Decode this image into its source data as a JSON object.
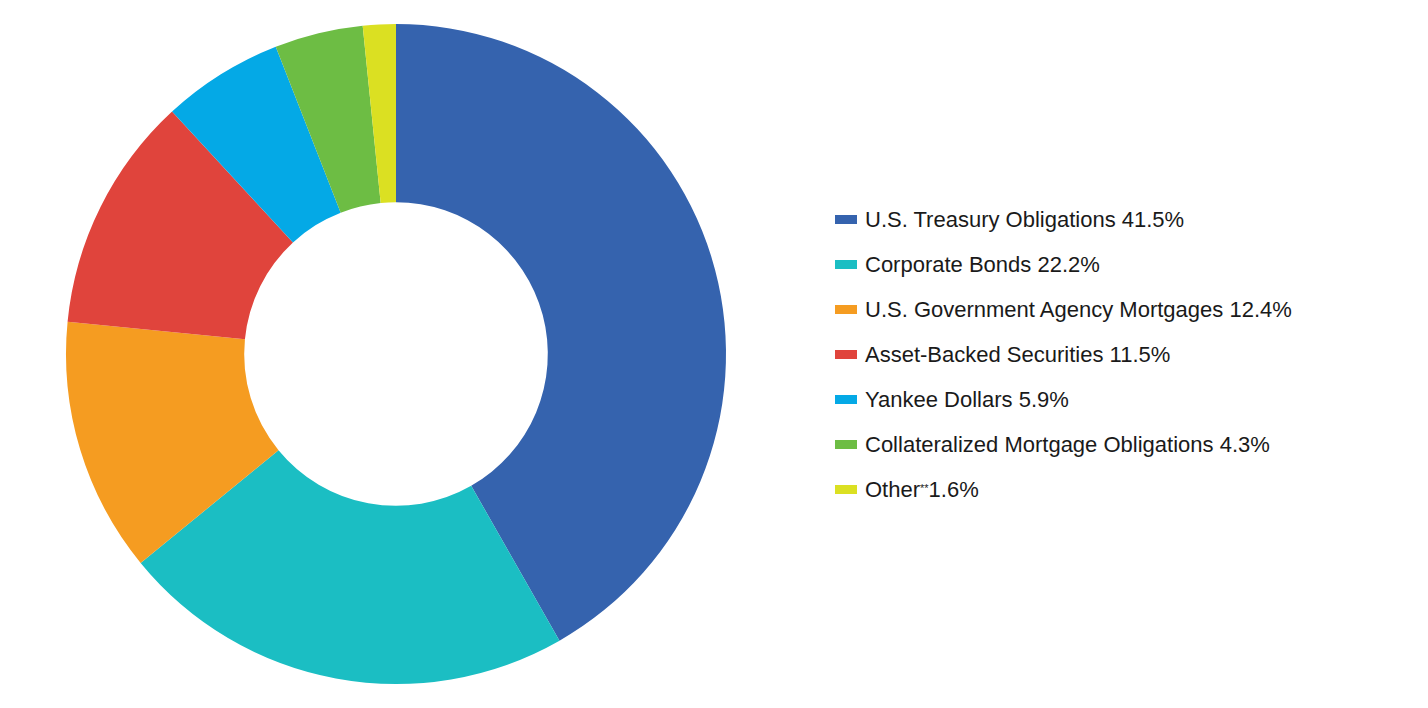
{
  "chart_data": {
    "type": "doughnut",
    "categories": [
      "U.S. Treasury Obligations",
      "Corporate Bonds",
      "U.S. Government Agency Mortgages",
      "Asset-Backed Securities",
      "Yankee Dollars",
      "Collateralized Mortgage Obligations",
      "Other**"
    ],
    "values": [
      41.5,
      22.2,
      12.4,
      11.5,
      5.9,
      4.3,
      1.6
    ],
    "value_labels": [
      "41.5%",
      "22.2%",
      "12.4%",
      "11.5%",
      "5.9%",
      "4.3%",
      "1.6%"
    ],
    "colors": [
      "#3563ae",
      "#1bbec3",
      "#f59c21",
      "#e0443c",
      "#04a9e6",
      "#6dbd44",
      "#dbe022"
    ],
    "legend": "right"
  }
}
